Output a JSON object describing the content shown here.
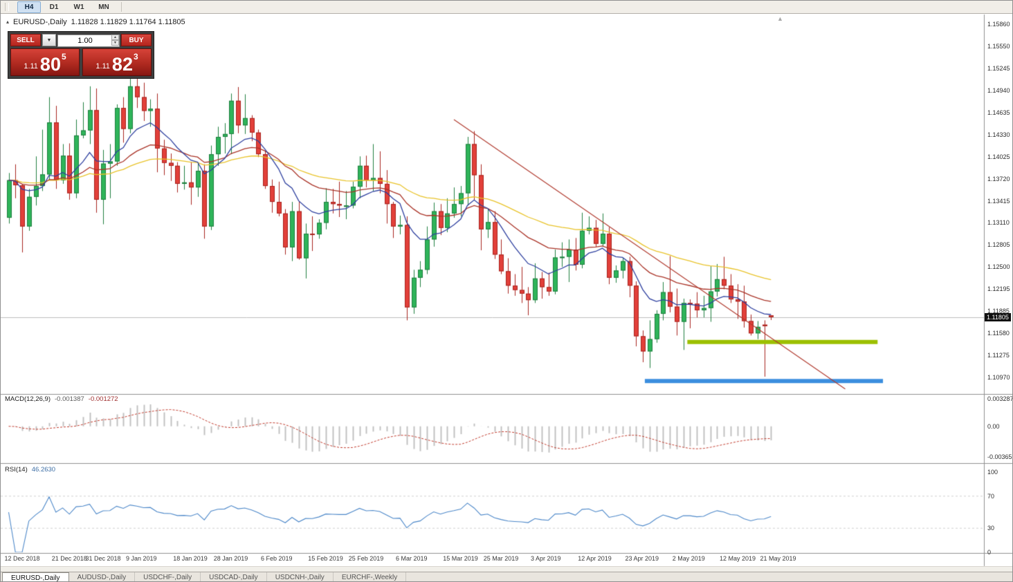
{
  "toolbar": {
    "timeframes": [
      {
        "label": "H4",
        "active": true
      },
      {
        "label": "D1",
        "active": false
      },
      {
        "label": "W1",
        "active": false
      },
      {
        "label": "MN",
        "active": false
      }
    ]
  },
  "chart_header": {
    "symbol_title": "EURUSD-,Daily",
    "ohlc": "1.11828 1.11829 1.11764 1.11805"
  },
  "trade_panel": {
    "sell_label": "SELL",
    "buy_label": "BUY",
    "volume_value": "1.00",
    "sell_price": {
      "small": "1.11",
      "big": "80",
      "sup": "5"
    },
    "buy_price": {
      "small": "1.11",
      "big": "82",
      "sup": "3"
    }
  },
  "icons": {
    "collapse_arrow": "▴",
    "dropdown_arrow": "▼",
    "spinner_up": "▲",
    "spinner_down": "▼",
    "shift_marker": "▲"
  },
  "symbol_tabs": [
    {
      "label": "EURUSD-,Daily",
      "active": true
    },
    {
      "label": "AUDUSD-,Daily",
      "active": false
    },
    {
      "label": "USDCHF-,Daily",
      "active": false
    },
    {
      "label": "USDCAD-,Daily",
      "active": false
    },
    {
      "label": "USDCNH-,Daily",
      "active": false
    },
    {
      "label": "EURCHF-,Weekly",
      "active": false
    }
  ],
  "chart_data": {
    "type": "candlestick",
    "symbol": "EURUSD-",
    "timeframe": "Daily",
    "current_price": "1.11805",
    "y_axis": {
      "labels": [
        "1.15860",
        "1.15550",
        "1.15245",
        "1.14940",
        "1.14635",
        "1.14330",
        "1.14025",
        "1.13720",
        "1.13415",
        "1.13110",
        "1.12805",
        "1.12500",
        "1.12195",
        "1.11885",
        "1.11580",
        "1.11275",
        "1.10970"
      ]
    },
    "x_axis": {
      "labels": [
        "12 Dec 2018",
        "21 Dec 2018",
        "31 Dec 2018",
        "9 Jan 2019",
        "18 Jan 2019",
        "28 Jan 2019",
        "6 Feb 2019",
        "15 Feb 2019",
        "25 Feb 2019",
        "6 Mar 2019",
        "15 Mar 2019",
        "25 Mar 2019",
        "3 Apr 2019",
        "12 Apr 2019",
        "23 Apr 2019",
        "2 May 2019",
        "12 May 2019",
        "21 May 2019"
      ],
      "indices": [
        0,
        7,
        12,
        18,
        25,
        31,
        38,
        45,
        51,
        58,
        65,
        71,
        78,
        85,
        92,
        99,
        106,
        112
      ]
    },
    "candles": [
      [
        1.1318,
        1.138,
        1.131,
        1.137
      ],
      [
        1.137,
        1.1392,
        1.1345,
        1.1363
      ],
      [
        1.1363,
        1.1365,
        1.127,
        1.1306
      ],
      [
        1.1306,
        1.1358,
        1.13,
        1.1347
      ],
      [
        1.1347,
        1.1403,
        1.1335,
        1.1362
      ],
      [
        1.1362,
        1.144,
        1.1355,
        1.1378
      ],
      [
        1.1378,
        1.1485,
        1.137,
        1.145
      ],
      [
        1.145,
        1.1473,
        1.1358,
        1.137
      ],
      [
        1.137,
        1.142,
        1.1365,
        1.1404
      ],
      [
        1.1404,
        1.1421,
        1.1343,
        1.1352
      ],
      [
        1.1352,
        1.1454,
        1.1345,
        1.1432
      ],
      [
        1.1432,
        1.1478,
        1.1428,
        1.1439
      ],
      [
        1.1439,
        1.15,
        1.142,
        1.1467
      ],
      [
        1.1467,
        1.1497,
        1.1325,
        1.1343
      ],
      [
        1.1343,
        1.1412,
        1.1309,
        1.1393
      ],
      [
        1.1393,
        1.142,
        1.1345,
        1.1396
      ],
      [
        1.1396,
        1.1475,
        1.139,
        1.147
      ],
      [
        1.147,
        1.1485,
        1.1422,
        1.1441
      ],
      [
        1.1441,
        1.1515,
        1.1435,
        1.15
      ],
      [
        1.15,
        1.152,
        1.147,
        1.1485
      ],
      [
        1.1485,
        1.1505,
        1.1452,
        1.1466
      ],
      [
        1.1466,
        1.1482,
        1.1444,
        1.1469
      ],
      [
        1.1469,
        1.149,
        1.1381,
        1.1414
      ],
      [
        1.1414,
        1.1426,
        1.1377,
        1.1394
      ],
      [
        1.1394,
        1.1407,
        1.1369,
        1.139
      ],
      [
        1.139,
        1.1395,
        1.1353,
        1.1365
      ],
      [
        1.1365,
        1.139,
        1.1357,
        1.1367
      ],
      [
        1.1367,
        1.1395,
        1.1336,
        1.136
      ],
      [
        1.136,
        1.1394,
        1.1347,
        1.1383
      ],
      [
        1.1383,
        1.1392,
        1.1289,
        1.1306
      ],
      [
        1.1306,
        1.1418,
        1.1301,
        1.1406
      ],
      [
        1.1406,
        1.1444,
        1.139,
        1.143
      ],
      [
        1.143,
        1.1449,
        1.1407,
        1.1434
      ],
      [
        1.1434,
        1.149,
        1.1406,
        1.148
      ],
      [
        1.148,
        1.1499,
        1.1435,
        1.1446
      ],
      [
        1.1446,
        1.1489,
        1.1434,
        1.1456
      ],
      [
        1.1456,
        1.146,
        1.1424,
        1.1436
      ],
      [
        1.1436,
        1.144,
        1.1402,
        1.1406
      ],
      [
        1.1406,
        1.141,
        1.1358,
        1.1362
      ],
      [
        1.1362,
        1.1371,
        1.1325,
        1.134
      ],
      [
        1.134,
        1.1368,
        1.132,
        1.1324
      ],
      [
        1.1324,
        1.133,
        1.1267,
        1.1277
      ],
      [
        1.1277,
        1.134,
        1.1258,
        1.1327
      ],
      [
        1.1327,
        1.1341,
        1.126,
        1.1262
      ],
      [
        1.1262,
        1.131,
        1.1234,
        1.1296
      ],
      [
        1.1296,
        1.132,
        1.1272,
        1.1295
      ],
      [
        1.1295,
        1.1316,
        1.1289,
        1.1311
      ],
      [
        1.1311,
        1.1359,
        1.1302,
        1.134
      ],
      [
        1.134,
        1.1358,
        1.1324,
        1.1337
      ],
      [
        1.1337,
        1.1368,
        1.1319,
        1.1335
      ],
      [
        1.1335,
        1.1355,
        1.1316,
        1.1335
      ],
      [
        1.1335,
        1.1368,
        1.1331,
        1.1361
      ],
      [
        1.1361,
        1.1403,
        1.1345,
        1.139
      ],
      [
        1.139,
        1.1404,
        1.136,
        1.137
      ],
      [
        1.137,
        1.142,
        1.1355,
        1.1373
      ],
      [
        1.1373,
        1.141,
        1.1352,
        1.1365
      ],
      [
        1.1365,
        1.1384,
        1.131,
        1.1337
      ],
      [
        1.1337,
        1.134,
        1.129,
        1.1306
      ],
      [
        1.1306,
        1.1321,
        1.1295,
        1.1308
      ],
      [
        1.1308,
        1.132,
        1.1176,
        1.1194
      ],
      [
        1.1194,
        1.1246,
        1.1185,
        1.1235
      ],
      [
        1.1235,
        1.1258,
        1.1222,
        1.1246
      ],
      [
        1.1246,
        1.1306,
        1.124,
        1.1288
      ],
      [
        1.1288,
        1.1339,
        1.1278,
        1.1327
      ],
      [
        1.1327,
        1.1337,
        1.1294,
        1.1304
      ],
      [
        1.1304,
        1.1345,
        1.1298,
        1.1324
      ],
      [
        1.1324,
        1.136,
        1.1318,
        1.1337
      ],
      [
        1.1337,
        1.1362,
        1.132,
        1.1352
      ],
      [
        1.1352,
        1.143,
        1.1335,
        1.142
      ],
      [
        1.142,
        1.1438,
        1.1343,
        1.1377
      ],
      [
        1.1377,
        1.1392,
        1.1273,
        1.1302
      ],
      [
        1.1302,
        1.133,
        1.129,
        1.1312
      ],
      [
        1.1312,
        1.1327,
        1.1261,
        1.1267
      ],
      [
        1.1267,
        1.1288,
        1.124,
        1.1244
      ],
      [
        1.1244,
        1.1262,
        1.1213,
        1.1224
      ],
      [
        1.1224,
        1.124,
        1.121,
        1.1218
      ],
      [
        1.1218,
        1.125,
        1.12,
        1.1213
      ],
      [
        1.1213,
        1.1222,
        1.1183,
        1.1204
      ],
      [
        1.1204,
        1.1255,
        1.12,
        1.1234
      ],
      [
        1.1234,
        1.1243,
        1.1206,
        1.1222
      ],
      [
        1.1222,
        1.1242,
        1.121,
        1.1216
      ],
      [
        1.1216,
        1.1274,
        1.1212,
        1.1263
      ],
      [
        1.1263,
        1.1284,
        1.125,
        1.1264
      ],
      [
        1.1264,
        1.1288,
        1.1229,
        1.1274
      ],
      [
        1.1274,
        1.129,
        1.1245,
        1.1253
      ],
      [
        1.1253,
        1.1325,
        1.1248,
        1.13
      ],
      [
        1.13,
        1.132,
        1.1295,
        1.1304
      ],
      [
        1.1304,
        1.1315,
        1.1278,
        1.1282
      ],
      [
        1.1282,
        1.1324,
        1.1278,
        1.1296
      ],
      [
        1.1296,
        1.1305,
        1.1226,
        1.1235
      ],
      [
        1.1235,
        1.1252,
        1.1228,
        1.1245
      ],
      [
        1.1245,
        1.1262,
        1.1234,
        1.1258
      ],
      [
        1.1258,
        1.1264,
        1.1208,
        1.1224
      ],
      [
        1.1224,
        1.123,
        1.114,
        1.1154
      ],
      [
        1.1154,
        1.1162,
        1.1118,
        1.1133
      ],
      [
        1.1133,
        1.1176,
        1.111,
        1.115
      ],
      [
        1.115,
        1.119,
        1.1145,
        1.1185
      ],
      [
        1.1185,
        1.1229,
        1.1176,
        1.1215
      ],
      [
        1.1215,
        1.1265,
        1.1187,
        1.1195
      ],
      [
        1.1195,
        1.122,
        1.1155,
        1.1174
      ],
      [
        1.1174,
        1.1206,
        1.1135,
        1.12
      ],
      [
        1.12,
        1.1205,
        1.1165,
        1.1199
      ],
      [
        1.1199,
        1.1215,
        1.118,
        1.119
      ],
      [
        1.119,
        1.121,
        1.118,
        1.1193
      ],
      [
        1.1193,
        1.1251,
        1.1174,
        1.1216
      ],
      [
        1.1216,
        1.1254,
        1.1209,
        1.1233
      ],
      [
        1.1233,
        1.1264,
        1.1219,
        1.1224
      ],
      [
        1.1224,
        1.124,
        1.12,
        1.1205
      ],
      [
        1.1205,
        1.1226,
        1.1178,
        1.1202
      ],
      [
        1.1202,
        1.1224,
        1.1166,
        1.1175
      ],
      [
        1.1175,
        1.1184,
        1.1155,
        1.1158
      ],
      [
        1.1158,
        1.1175,
        1.115,
        1.1167
      ],
      [
        1.117,
        1.1176,
        1.1098,
        1.1168
      ],
      [
        1.11828,
        1.11829,
        1.11764,
        1.11805
      ]
    ],
    "overlays": {
      "ma_fast": {
        "type": "EMA",
        "period": 10,
        "color": "#2C3E9E"
      },
      "ma_mid": {
        "type": "EMA",
        "period": 25,
        "color": "#A93226"
      },
      "ma_slow": {
        "type": "EMA",
        "period": 50,
        "color": "#E8C227"
      },
      "trendline": {
        "from_index": 66,
        "from_price": 1.1454,
        "to_index": 124,
        "to_price": 1.1081,
        "color": "#B03A2E"
      },
      "support_line_green": {
        "from_index": 100.6,
        "to_index": 128.8,
        "price": 1.1146,
        "color": "#9CC000",
        "width": 6
      },
      "support_line_blue": {
        "from_index": 94.3,
        "to_index": 129.6,
        "price": 1.1092,
        "color": "#3B8EDE",
        "width": 6
      }
    },
    "indicators": {
      "macd": {
        "title": "MACD(12,26,9)",
        "value_main": "-0.001387",
        "value_signal": "-0.001272",
        "fast": 12,
        "slow": 26,
        "signal_period": 9,
        "scale_labels": [
          "0.003287",
          "0.00",
          "-0.003659"
        ]
      },
      "rsi": {
        "title": "RSI(14)",
        "value": "46.2630",
        "period": 14,
        "levels": [
          70,
          30
        ],
        "scale_labels": [
          "100",
          "70",
          "30",
          "0"
        ]
      }
    },
    "colors": {
      "up": "#2FB45A",
      "up_border": "#1E7E3E",
      "down": "#E2403A",
      "down_border": "#A7221D",
      "macd_hist": "#C2C2C2",
      "macd_signal": "#C0392B",
      "rsi_line": "#4A86C8",
      "rsi_level": "#CFCFCF",
      "bid_line": "#BDBDBD",
      "separator": "#8F8F8F"
    }
  }
}
